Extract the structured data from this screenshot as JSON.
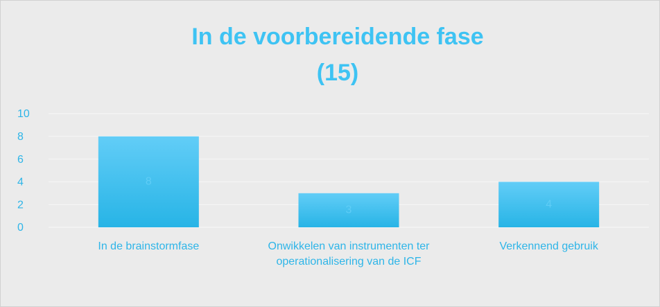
{
  "chart_data": {
    "type": "bar",
    "title": [
      "In de voorbereidende fase",
      "(15)"
    ],
    "categories": [
      "In de brainstormfase",
      "Onwikkelen van instrumenten ter operationalisering van de ICF",
      "Verkennend gebruik"
    ],
    "values": [
      8,
      3,
      4
    ],
    "color": "#3fc2f4",
    "ylim": [
      0,
      10
    ],
    "yticks": [
      0,
      2,
      4,
      6,
      8,
      10
    ],
    "grid": true
  }
}
